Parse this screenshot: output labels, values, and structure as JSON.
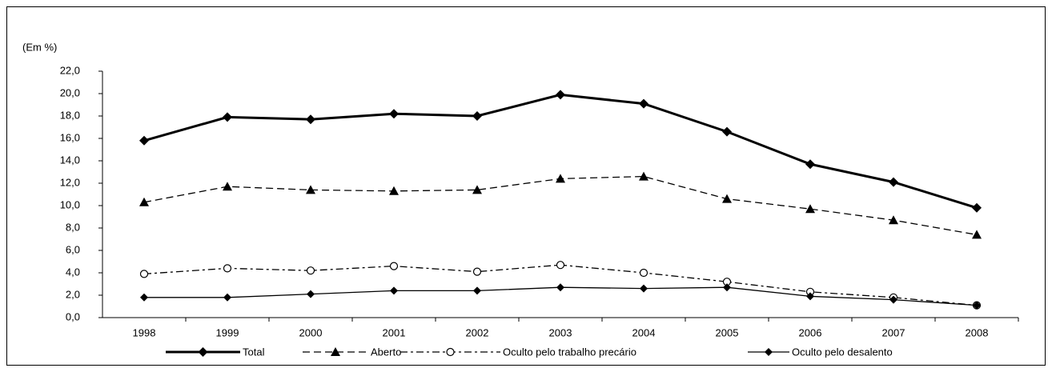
{
  "chart_data": {
    "type": "line",
    "ylabel": "(Em %)",
    "categories": [
      "1998",
      "1999",
      "2000",
      "2001",
      "2002",
      "2003",
      "2004",
      "2005",
      "2006",
      "2007",
      "2008"
    ],
    "series": [
      {
        "name": "Total",
        "color": "#000000",
        "line_style": "solid-thick",
        "marker": "diamond",
        "values": [
          15.8,
          17.9,
          17.7,
          18.2,
          18.0,
          19.9,
          19.1,
          16.6,
          13.7,
          12.1,
          9.8
        ]
      },
      {
        "name": "Aberto",
        "color": "#000000",
        "line_style": "dashed",
        "marker": "triangle",
        "values": [
          10.3,
          11.7,
          11.4,
          11.3,
          11.4,
          12.4,
          12.6,
          10.6,
          9.7,
          8.7,
          7.4
        ]
      },
      {
        "name": "Oculto pelo trabalho precário",
        "color": "#000000",
        "line_style": "dash-dot",
        "marker": "circle",
        "values": [
          3.9,
          4.4,
          4.2,
          4.6,
          4.1,
          4.7,
          4.0,
          3.2,
          2.3,
          1.8,
          1.1
        ]
      },
      {
        "name": "Oculto pelo desalento",
        "color": "#000000",
        "line_style": "solid",
        "marker": "diamond",
        "values": [
          1.8,
          1.8,
          2.1,
          2.4,
          2.4,
          2.7,
          2.6,
          2.7,
          1.9,
          1.6,
          1.1
        ]
      }
    ],
    "ylim": [
      0,
      22
    ],
    "yticks": [
      {
        "value": 0,
        "label": "0,0"
      },
      {
        "value": 2,
        "label": "2,0"
      },
      {
        "value": 4,
        "label": "4,0"
      },
      {
        "value": 6,
        "label": "6,0"
      },
      {
        "value": 8,
        "label": "8,0"
      },
      {
        "value": 10,
        "label": "10,0"
      },
      {
        "value": 12,
        "label": "12,0"
      },
      {
        "value": 14,
        "label": "14,0"
      },
      {
        "value": 16,
        "label": "16,0"
      },
      {
        "value": 18,
        "label": "18,0"
      },
      {
        "value": 20,
        "label": "20,0"
      },
      {
        "value": 22,
        "label": "22,0"
      }
    ],
    "grid": false,
    "legend": "bottom"
  }
}
